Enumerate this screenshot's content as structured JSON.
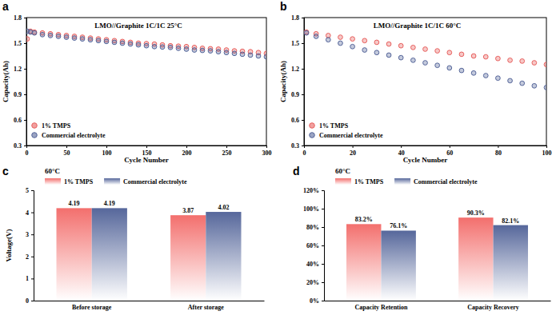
{
  "chart_data": [
    {
      "type": "scatter",
      "annotation": "a",
      "title": "LMO//Graphite 1C/1C 25°C",
      "x_label": "Cycle Number",
      "y_label": "Capacity(Ah)",
      "x": [
        1,
        5,
        10,
        20,
        30,
        40,
        50,
        60,
        70,
        80,
        90,
        100,
        110,
        120,
        130,
        140,
        150,
        160,
        170,
        180,
        190,
        200,
        210,
        220,
        230,
        240,
        250,
        260,
        270,
        280,
        290,
        300
      ],
      "xlim": [
        0,
        300
      ],
      "xticks": [
        0,
        50,
        100,
        150,
        200,
        250,
        300
      ],
      "ylim": [
        0.3,
        1.8
      ],
      "yticks": [
        0.3,
        0.6,
        0.9,
        1.2,
        1.5,
        1.8
      ],
      "legend": "lower left",
      "marker": "circle",
      "series": [
        {
          "name": "1% TMPS",
          "color": "#e8615f",
          "values": [
            1.55,
            1.64,
            1.63,
            1.62,
            1.61,
            1.6,
            1.59,
            1.58,
            1.57,
            1.56,
            1.55,
            1.54,
            1.53,
            1.52,
            1.51,
            1.5,
            1.495,
            1.49,
            1.48,
            1.47,
            1.465,
            1.46,
            1.45,
            1.44,
            1.435,
            1.43,
            1.42,
            1.41,
            1.405,
            1.4,
            1.39,
            1.38
          ]
        },
        {
          "name": "Commercial electrolyte",
          "color": "#56669a",
          "values": [
            1.64,
            1.63,
            1.62,
            1.6,
            1.59,
            1.58,
            1.57,
            1.56,
            1.55,
            1.54,
            1.53,
            1.52,
            1.51,
            1.5,
            1.49,
            1.48,
            1.47,
            1.46,
            1.455,
            1.45,
            1.44,
            1.43,
            1.42,
            1.415,
            1.41,
            1.4,
            1.39,
            1.38,
            1.37,
            1.36,
            1.35,
            1.34
          ]
        }
      ]
    },
    {
      "type": "scatter",
      "annotation": "b",
      "title": "LMO//Graphite 1C/1C 60°C",
      "x_label": "Cycle Number",
      "y_label": "Capacity(Ah)",
      "x": [
        1,
        5,
        10,
        15,
        20,
        25,
        30,
        35,
        40,
        45,
        50,
        55,
        60,
        65,
        70,
        75,
        80,
        85,
        90,
        95,
        100
      ],
      "xlim": [
        0,
        100
      ],
      "xticks": [
        0,
        20,
        40,
        60,
        80,
        100
      ],
      "ylim": [
        0.3,
        1.8
      ],
      "yticks": [
        0.3,
        0.6,
        0.9,
        1.2,
        1.5,
        1.8
      ],
      "legend": "lower left",
      "marker": "circle",
      "series": [
        {
          "name": "1% TMPS",
          "color": "#e8615f",
          "values": [
            1.63,
            1.61,
            1.59,
            1.57,
            1.55,
            1.53,
            1.51,
            1.49,
            1.47,
            1.45,
            1.43,
            1.41,
            1.39,
            1.37,
            1.35,
            1.34,
            1.32,
            1.3,
            1.29,
            1.27,
            1.25
          ]
        },
        {
          "name": "Commercial electrolyte",
          "color": "#56669a",
          "values": [
            1.62,
            1.58,
            1.54,
            1.5,
            1.46,
            1.42,
            1.39,
            1.36,
            1.33,
            1.3,
            1.27,
            1.24,
            1.21,
            1.18,
            1.15,
            1.12,
            1.09,
            1.06,
            1.03,
            1.0,
            0.98
          ]
        }
      ]
    },
    {
      "type": "bar",
      "annotation": "c",
      "title": "60°C",
      "y_label": "Voltage(V)",
      "categories": [
        "Before storage",
        "After storage"
      ],
      "ylim": [
        0,
        5
      ],
      "yticks": [
        0,
        1,
        2,
        3,
        4,
        5
      ],
      "legend": "upper left",
      "data_labels": true,
      "series": [
        {
          "name": "1% TMPS",
          "color": "#f36f6d",
          "values": [
            4.19,
            3.87
          ]
        },
        {
          "name": "Commercial electrolyte",
          "color": "#56679b",
          "values": [
            4.19,
            4.02
          ]
        }
      ]
    },
    {
      "type": "bar",
      "annotation": "d",
      "title": "60°C",
      "categories": [
        "Capacity Retention",
        "Capacity Recovery"
      ],
      "ylim": [
        0,
        120
      ],
      "yticks": [
        {
          "value": 0,
          "label": "0%"
        },
        {
          "value": 20,
          "label": "20%"
        },
        {
          "value": 40,
          "label": "40%"
        },
        {
          "value": 60,
          "label": "60%"
        },
        {
          "value": 80,
          "label": "80%"
        },
        {
          "value": 100,
          "label": "100%"
        },
        {
          "value": 120,
          "label": "120%"
        }
      ],
      "legend": "upper left",
      "data_labels": true,
      "series": [
        {
          "name": "1% TMPS",
          "color": "#f36f6d",
          "values": [
            83.2,
            90.3
          ],
          "value_labels": [
            "83.2%",
            "90.3%"
          ]
        },
        {
          "name": "Commercial electrolyte",
          "color": "#56679b",
          "values": [
            76.1,
            82.1
          ],
          "value_labels": [
            "76.1%",
            "82.1%"
          ]
        }
      ]
    }
  ]
}
